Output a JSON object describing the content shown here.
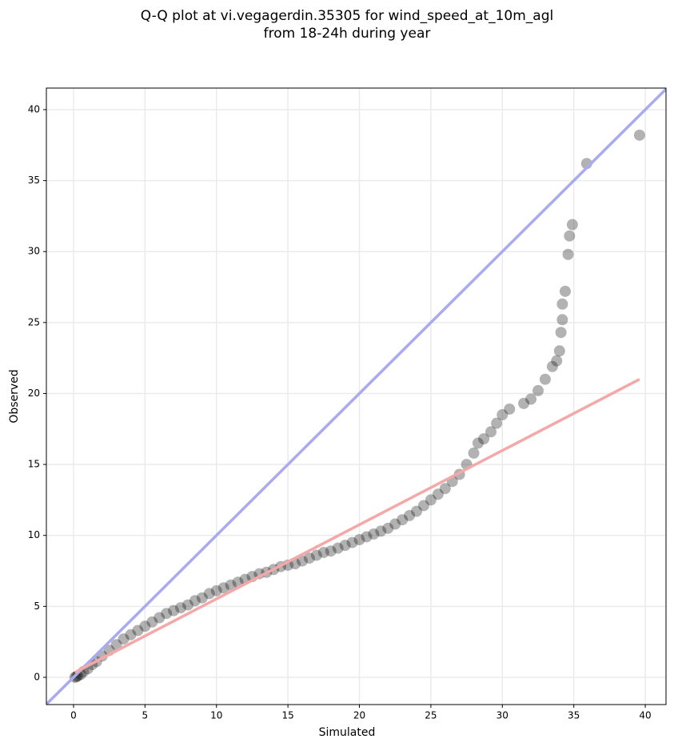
{
  "chart_data": {
    "type": "scatter",
    "title": [
      "Q-Q plot at vi.vegagerdin.35305 for wind_speed_at_10m_agl",
      "from 18-24h during year"
    ],
    "x_label": "Simulated",
    "y_label": "Observed",
    "xlim": [
      -1.9,
      41.45
    ],
    "ylim": [
      -1.92,
      41.52
    ],
    "xticks": [
      0,
      5,
      10,
      15,
      20,
      25,
      30,
      35,
      40
    ],
    "yticks": [
      0,
      5,
      10,
      15,
      20,
      25,
      30,
      35,
      40
    ],
    "grid": true,
    "series": [
      {
        "color": "#000000",
        "opacity": 0.3,
        "x": [
          0.1,
          0.2,
          0.3,
          0.5,
          0.7,
          1,
          1.3,
          1.6,
          2,
          2.5,
          3,
          3.5,
          4,
          4.5,
          5,
          5.5,
          6,
          6.5,
          7,
          7.5,
          8,
          8.5,
          9,
          9.5,
          10,
          10.5,
          11,
          11.5,
          12,
          12.5,
          13,
          13.5,
          14,
          14.5,
          15,
          15.5,
          16,
          16.5,
          17,
          17.5,
          18,
          18.5,
          19,
          19.5,
          20,
          20.5,
          21,
          21.5,
          22,
          22.5,
          23,
          23.5,
          24,
          24.5,
          25,
          25.5,
          26,
          26.5,
          27,
          27.5,
          28,
          28.3,
          28.7,
          29.2,
          29.6,
          30,
          30.5,
          31.5,
          32,
          32.5,
          33,
          33.5,
          33.8,
          34,
          34.1,
          34.2,
          34.2,
          34.4,
          34.6,
          34.7,
          34.9,
          35.9,
          39.6
        ],
        "y": [
          0,
          0.05,
          0.1,
          0.2,
          0.4,
          0.6,
          0.9,
          1.1,
          1.5,
          1.9,
          2.3,
          2.7,
          3,
          3.3,
          3.6,
          3.9,
          4.2,
          4.5,
          4.7,
          4.9,
          5.1,
          5.4,
          5.6,
          5.9,
          6.1,
          6.3,
          6.5,
          6.7,
          6.9,
          7.1,
          7.3,
          7.4,
          7.6,
          7.8,
          7.9,
          8,
          8.2,
          8.4,
          8.6,
          8.8,
          8.9,
          9.1,
          9.3,
          9.5,
          9.7,
          9.9,
          10.1,
          10.3,
          10.5,
          10.8,
          11.1,
          11.4,
          11.7,
          12.1,
          12.5,
          12.9,
          13.3,
          13.8,
          14.3,
          15,
          15.8,
          16.5,
          16.8,
          17.3,
          17.9,
          18.5,
          18.9,
          19.3,
          19.6,
          20.2,
          21,
          21.9,
          22.3,
          23,
          24.3,
          25.2,
          26.3,
          27.2,
          29.8,
          31.1,
          31.9,
          36.2,
          38.2
        ]
      }
    ],
    "lines": [
      {
        "color": "#aaaaee",
        "x": [
          -1.9,
          41.45
        ],
        "y": [
          -1.9,
          41.45
        ]
      },
      {
        "color": "#f4a8a8",
        "x": [
          0.1,
          39.6
        ],
        "y": [
          0.35,
          21.0
        ]
      }
    ]
  }
}
